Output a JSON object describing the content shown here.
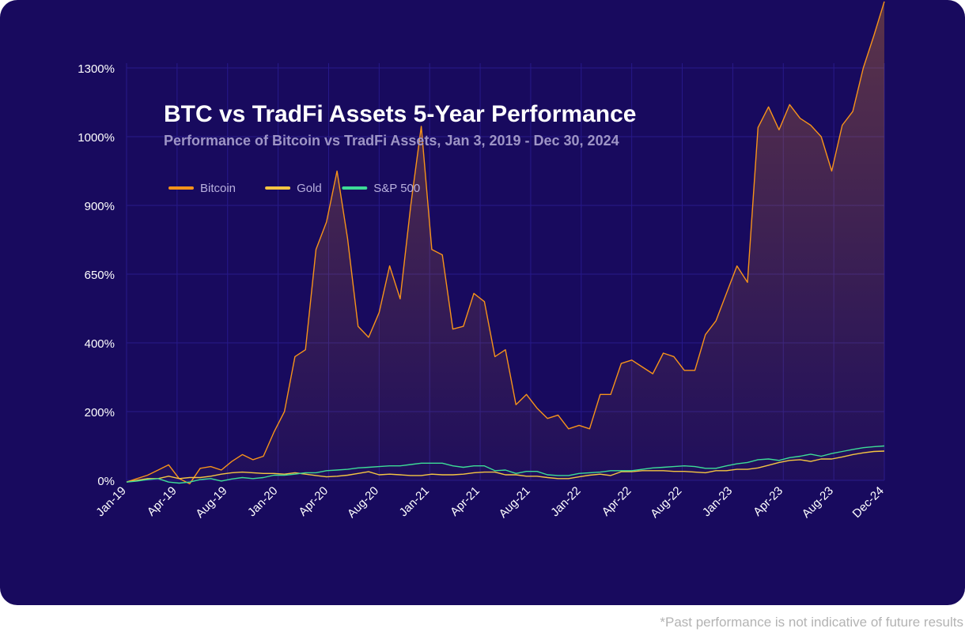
{
  "footer": {
    "disclaimer": "*Past performance is not indicative of future results"
  },
  "colors": {
    "background": "#180a5e",
    "grid": "#27198a",
    "axis_text": "#ffffff",
    "title": "#ffffff",
    "subtitle": "#9e95c6",
    "legend_text": "#b8b0de"
  },
  "chart_data": {
    "type": "line",
    "title": "BTC vs TradFi Assets 5-Year Performance",
    "subtitle": "Performance of Bitcoin vs TradFi Assets, Jan 3, 2019 - Dec 30, 2024",
    "xlabel": "",
    "ylabel": "",
    "x_tick_labels": [
      "Jan-19",
      "Apr-19",
      "Aug-19",
      "Jan-20",
      "Apr-20",
      "Aug-20",
      "Jan-21",
      "Apr-21",
      "Aug-21",
      "Jan-22",
      "Apr-22",
      "Aug-22",
      "Jan-23",
      "Apr-23",
      "Aug-23",
      "Dec-24"
    ],
    "y_tick_labels": [
      "0%",
      "200%",
      "400%",
      "650%",
      "900%",
      "1000%",
      "1300%"
    ],
    "grid": true,
    "legend_position": "top-left",
    "series": [
      {
        "name": "Bitcoin",
        "color": "#f7931a",
        "area": true,
        "values": [
          -5,
          5,
          15,
          30,
          45,
          5,
          -10,
          35,
          40,
          30,
          55,
          75,
          60,
          70,
          140,
          200,
          360,
          380,
          740,
          840,
          950,
          780,
          460,
          420,
          510,
          680,
          560,
          900,
          1045,
          740,
          720,
          450,
          460,
          580,
          550,
          360,
          380,
          220,
          250,
          210,
          180,
          190,
          150,
          160,
          150,
          250,
          250,
          340,
          350,
          330,
          310,
          370,
          360,
          320,
          320,
          430,
          480,
          580,
          680,
          620,
          1040,
          1130,
          1030,
          1140,
          1080,
          1050,
          1000,
          950,
          1050,
          1110,
          1300,
          1440,
          1590
        ]
      },
      {
        "name": "Gold",
        "color": "#f5c542",
        "area": false,
        "values": [
          -5,
          0,
          5,
          5,
          12,
          5,
          8,
          8,
          12,
          18,
          22,
          24,
          22,
          20,
          20,
          18,
          22,
          18,
          14,
          10,
          12,
          15,
          20,
          25,
          16,
          18,
          16,
          14,
          14,
          18,
          16,
          16,
          18,
          22,
          24,
          24,
          16,
          16,
          12,
          12,
          8,
          5,
          5,
          10,
          15,
          18,
          14,
          25,
          25,
          28,
          28,
          28,
          26,
          26,
          24,
          22,
          28,
          28,
          32,
          32,
          36,
          44,
          52,
          58,
          60,
          55,
          62,
          62,
          68,
          75,
          80,
          84,
          85
        ]
      },
      {
        "name": "S&P 500",
        "color": "#3ddc97",
        "area": false,
        "values": [
          -5,
          -2,
          2,
          5,
          -5,
          -8,
          -5,
          2,
          5,
          -2,
          4,
          8,
          5,
          8,
          15,
          15,
          18,
          22,
          22,
          28,
          30,
          32,
          36,
          38,
          40,
          42,
          42,
          46,
          50,
          50,
          50,
          42,
          38,
          42,
          42,
          28,
          30,
          20,
          26,
          26,
          16,
          14,
          14,
          20,
          22,
          24,
          28,
          28,
          28,
          32,
          36,
          38,
          40,
          42,
          40,
          35,
          35,
          42,
          48,
          52,
          60,
          62,
          58,
          66,
          70,
          76,
          70,
          78,
          84,
          90,
          95,
          98,
          100
        ]
      }
    ]
  }
}
